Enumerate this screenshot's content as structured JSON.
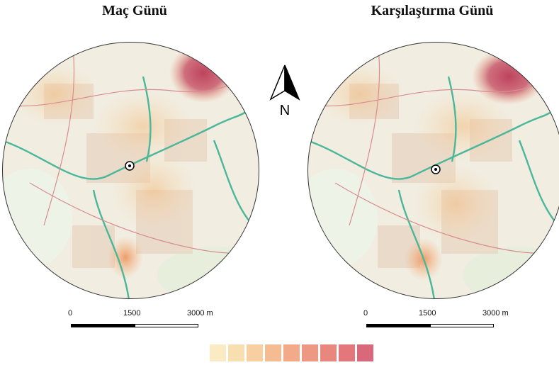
{
  "titles": {
    "left": "Maç Günü",
    "right": "Karşılaştırma Günü"
  },
  "north_arrow": {
    "label": "N"
  },
  "scale_bar": {
    "labels": [
      "0",
      "1500",
      "3000 m"
    ]
  },
  "legend": {
    "colors": [
      "#ffffff",
      "#faebc4",
      "#f8dfb0",
      "#f7cfa1",
      "#f5bc92",
      "#f2aa88",
      "#ee9883",
      "#e9877f",
      "#e3777c",
      "#d9697a"
    ]
  },
  "maps": {
    "left_name": "Maç Günü",
    "right_name": "Karşılaştırma Günü"
  }
}
